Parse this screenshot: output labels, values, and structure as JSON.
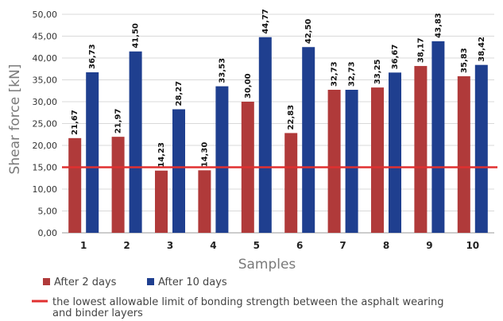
{
  "chart_data": {
    "type": "bar",
    "ylabel": "Shear force [kN]",
    "xlabel": "Samples",
    "ylim": [
      0,
      50
    ],
    "y_ticks": [
      "0,00",
      "5,00",
      "10,00",
      "15,00",
      "20,00",
      "25,00",
      "30,00",
      "35,00",
      "40,00",
      "45,00",
      "50,00"
    ],
    "categories": [
      "1",
      "2",
      "3",
      "4",
      "5",
      "6",
      "7",
      "8",
      "9",
      "10"
    ],
    "series": [
      {
        "name": "After 2 days",
        "color": "#b03a3a",
        "values": [
          21.67,
          21.97,
          14.23,
          14.3,
          30.0,
          22.83,
          32.73,
          33.25,
          38.17,
          35.83
        ],
        "labels": [
          "21,67",
          "21,97",
          "14,23",
          "14,30",
          "30,00",
          "22,83",
          "32,73",
          "33,25",
          "38,17",
          "35,83"
        ]
      },
      {
        "name": "After 10 days",
        "color": "#1f3f8f",
        "values": [
          36.73,
          41.5,
          28.27,
          33.53,
          44.77,
          42.5,
          32.73,
          36.67,
          43.83,
          38.42
        ],
        "labels": [
          "36,73",
          "41,50",
          "28,27",
          "33,53",
          "44,77",
          "42,50",
          "32,73",
          "36,67",
          "43,83",
          "38,42"
        ]
      }
    ],
    "reference_line": {
      "value": 15,
      "color": "#e03030",
      "label": "the lowest allowable limit of bonding strength between the asphalt wearing and binder layers"
    },
    "grid": true,
    "legend_position": "bottom"
  }
}
